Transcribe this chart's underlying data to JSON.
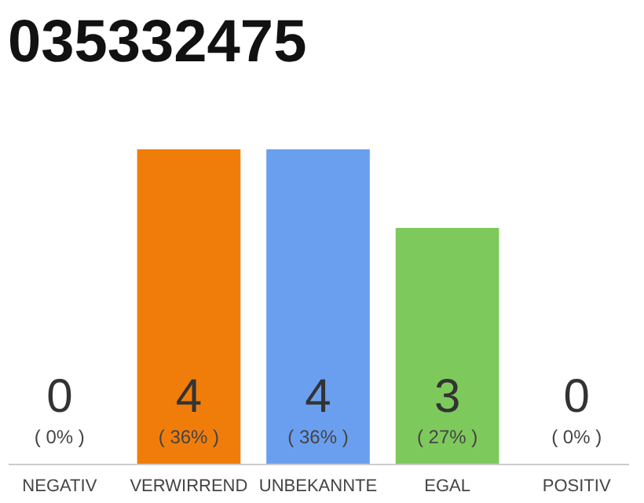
{
  "chart_data": {
    "type": "bar",
    "title": "035332475",
    "categories": [
      "NEGATIV",
      "VERWIRREND",
      "UNBEKANNTE",
      "EGAL",
      "POSITIV"
    ],
    "values": [
      0,
      4,
      4,
      3,
      0
    ],
    "colors": [
      "#efefef",
      "#f07d0a",
      "#6a9fef",
      "#7ec95c",
      "#efefef"
    ],
    "tick_labels": "x",
    "value_labels": [
      "0",
      "4",
      "4",
      "3",
      "0"
    ],
    "annotations": [
      "( 0% )",
      "( 36% )",
      "( 36% )",
      "( 27% )",
      "( 0% )"
    ]
  }
}
